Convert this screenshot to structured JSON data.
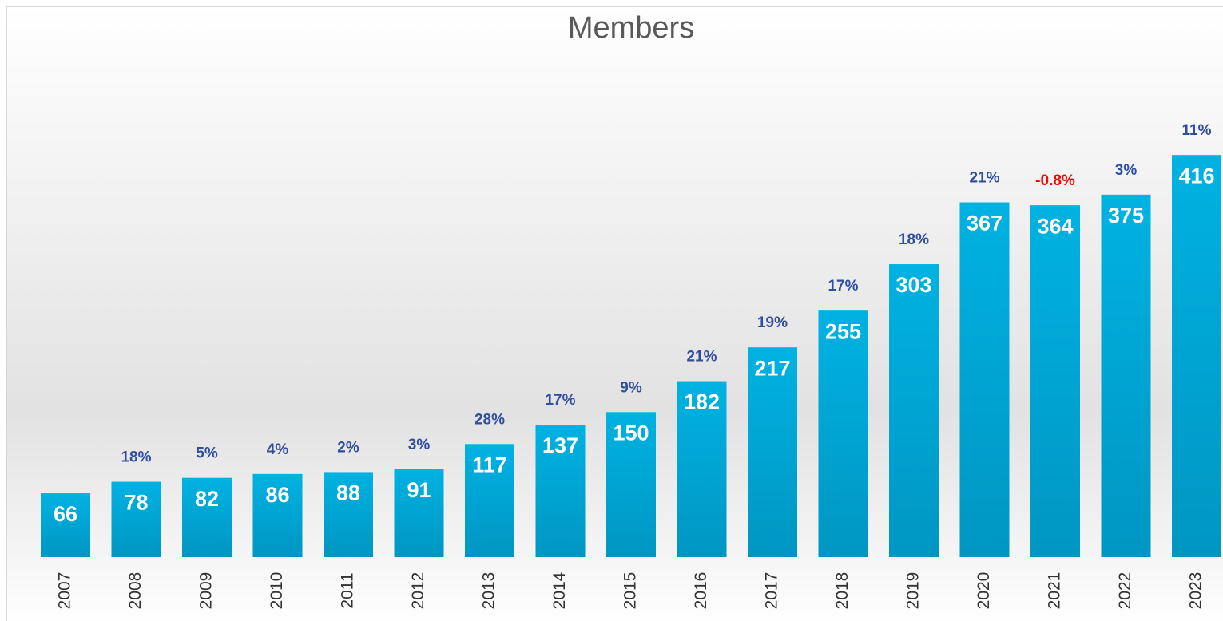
{
  "chart_data": {
    "type": "bar",
    "title": "Members",
    "categories": [
      "2007",
      "2008",
      "2009",
      "2010",
      "2011",
      "2012",
      "2013",
      "2014",
      "2015",
      "2016",
      "2017",
      "2018",
      "2019",
      "2020",
      "2021",
      "2022",
      "2023"
    ],
    "values": [
      66,
      78,
      82,
      86,
      88,
      91,
      117,
      137,
      150,
      182,
      217,
      255,
      303,
      367,
      364,
      375,
      416
    ],
    "color": "#00aad8",
    "ylim": [
      0,
      450
    ],
    "growth": {
      "values": [
        null,
        18,
        5,
        4,
        2,
        3,
        28,
        17,
        9,
        21,
        19,
        17,
        18,
        21,
        -0.8,
        3,
        11
      ],
      "value_labels": [
        null,
        "18%",
        "5%",
        "4%",
        "2%",
        "3%",
        "28%",
        "17%",
        "9%",
        "21%",
        "19%",
        "17%",
        "18%",
        "21%",
        "-0.8%",
        "3%",
        "11%"
      ],
      "color": "#2f4ea0",
      "negative_color": "#ff0000"
    }
  }
}
